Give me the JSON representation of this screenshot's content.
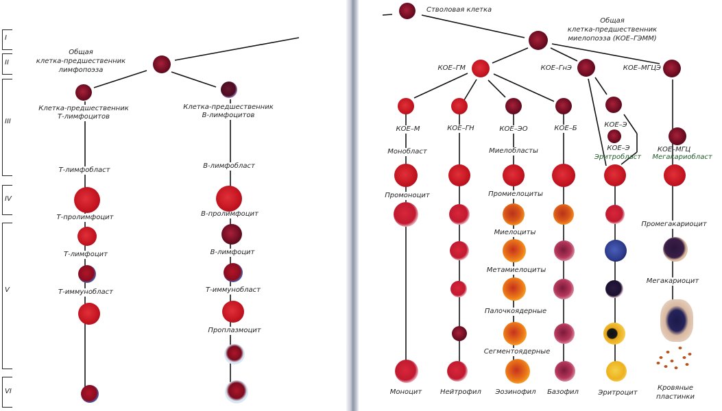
{
  "stages": [
    "I",
    "II",
    "III",
    "IV",
    "V",
    "VI"
  ],
  "lymphopoiesis": {
    "common_progenitor": [
      "Общая",
      "клетка-предшественник",
      "лимфопоэза"
    ],
    "t_precursor": [
      "Клетка-предшественник",
      "Т-лимфоцитов"
    ],
    "b_precursor": [
      "Клетка-предшественник",
      "В-лимфоцитов"
    ],
    "t_series": [
      "Т-лимфобласт",
      "Т-пролимфоцит",
      "Т-лимфоцит",
      "Т-иммунобласт"
    ],
    "b_series": [
      "В-лимфобласт",
      "В-пролимфоцит",
      "В-лимфоцит",
      "Т-иммунобласт",
      "Проплазмоцит"
    ]
  },
  "myelopoiesis": {
    "stem_cell": "Стволовая клетка",
    "common_progenitor": [
      "Общая",
      "клетка-предшественник",
      "миелопоэза (КОЕ–ГЭММ)"
    ],
    "cfu": [
      "КОЕ–ГМ",
      "КОЕ–ГнЭ",
      "КОЕ–МГЦЭ"
    ],
    "cfu_row": [
      "КОЕ–М",
      "КОЕ–ГН",
      "КОЕ–ЭО",
      "КОЕ–Б",
      "КОЕ–Э",
      "КОЕ–Э",
      "КОЕ–МГЦ"
    ],
    "blasts": [
      "Монобласт",
      "Миелобласты",
      "Эритробласт",
      "Мегакариобласт"
    ],
    "stages": [
      "Промоноцит",
      "Промиелоциты",
      "Миелоциты",
      "Метамиелоциты",
      "Палочкоядерные",
      "Сегментоядерные",
      "Промегакариоцит",
      "Мегакариоцит"
    ],
    "mature": [
      "Моноцит",
      "Нейтрофил",
      "Эозинофил",
      "Базофил",
      "Эритроцит"
    ],
    "platelets": [
      "Кровяные",
      "пластинки"
    ]
  }
}
